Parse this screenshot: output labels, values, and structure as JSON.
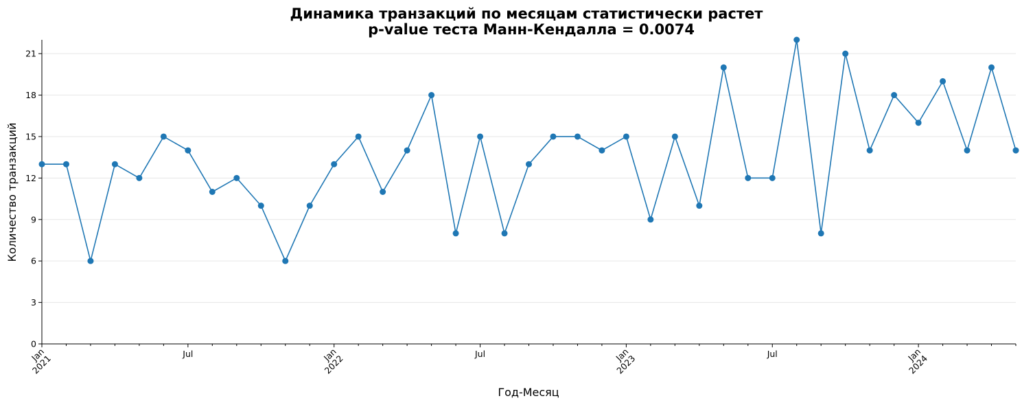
{
  "chart_data": {
    "type": "line",
    "title": "Динамика транзакций по месяцам статистически растет",
    "subtitle": "p-value теста Манн-Кендалла = 0.0074",
    "xlabel": "Год-Месяц",
    "ylabel": "Количество транзакций",
    "ylim": [
      0,
      22
    ],
    "yticks": [
      0,
      3,
      6,
      9,
      12,
      15,
      18,
      21
    ],
    "grid": "horizontal",
    "color": "#1f77b4",
    "x": [
      "2021-01",
      "2021-02",
      "2021-03",
      "2021-04",
      "2021-05",
      "2021-06",
      "2021-07",
      "2021-08",
      "2021-09",
      "2021-10",
      "2021-11",
      "2021-12",
      "2022-01",
      "2022-02",
      "2022-03",
      "2022-04",
      "2022-05",
      "2022-06",
      "2022-07",
      "2022-08",
      "2022-09",
      "2022-10",
      "2022-11",
      "2022-12",
      "2023-01",
      "2023-02",
      "2023-03",
      "2023-04",
      "2023-05",
      "2023-06",
      "2023-07",
      "2023-08",
      "2023-09",
      "2023-10",
      "2023-11",
      "2023-12",
      "2024-01",
      "2024-02",
      "2024-03",
      "2024-04",
      "2024-05"
    ],
    "values": [
      13,
      13,
      6,
      13,
      12,
      15,
      14,
      11,
      12,
      10,
      6,
      10,
      13,
      15,
      11,
      14,
      18,
      8,
      15,
      8,
      13,
      15,
      15,
      14,
      15,
      9,
      15,
      10,
      20,
      12,
      12,
      22,
      8,
      21,
      14,
      18,
      16,
      19,
      14,
      20,
      14
    ],
    "xticks": [
      {
        "index": 0,
        "month": "Jan",
        "year": "2021"
      },
      {
        "index": 6,
        "month": "Jul",
        "year": ""
      },
      {
        "index": 12,
        "month": "Jan",
        "year": "2022"
      },
      {
        "index": 18,
        "month": "Jul",
        "year": ""
      },
      {
        "index": 24,
        "month": "Jan",
        "year": "2023"
      },
      {
        "index": 30,
        "month": "Jul",
        "year": ""
      },
      {
        "index": 36,
        "month": "Jan",
        "year": "2024"
      }
    ]
  }
}
